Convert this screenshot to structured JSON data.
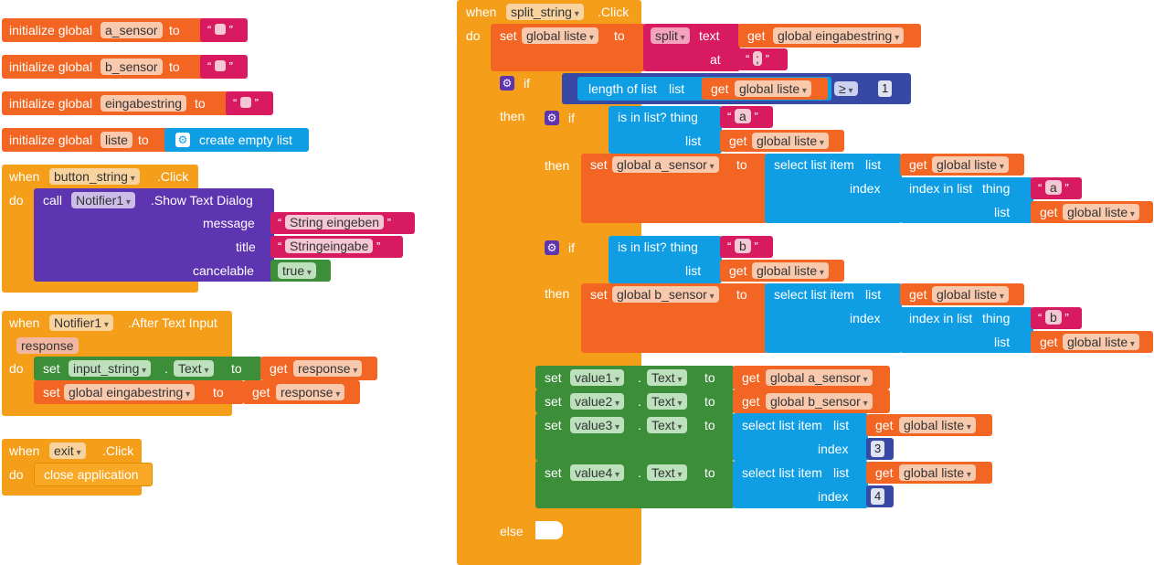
{
  "kw": {
    "initialize_global": "initialize global",
    "to": "to",
    "when": "when",
    "do": "do",
    "click": ".Click",
    "call": "call",
    "set": "set",
    "get": "get",
    "if": "if",
    "then": "then",
    "else": "else",
    "text": "text",
    "at": "at",
    "list": "list",
    "index": "index",
    "thing": "thing",
    "dot": ".",
    "open_quote": "“",
    "close_quote": "”"
  },
  "globals": [
    {
      "name": "a_sensor",
      "value": ""
    },
    {
      "name": "b_sensor",
      "value": ""
    },
    {
      "name": "eingabestring",
      "value": ""
    },
    {
      "name": "liste",
      "value": "create empty list"
    }
  ],
  "button_string_event": {
    "component": "button_string",
    "notifier": "Notifier1",
    "method": ".Show Text Dialog",
    "message_label": "message",
    "message_value": "String eingeben",
    "title_label": "title",
    "title_value": "Stringeingabe",
    "cancelable_label": "cancelable",
    "cancelable_value": "true"
  },
  "after_text_input_event": {
    "component": "Notifier1",
    "event": ".After Text Input",
    "param": "response",
    "set1_component": "input_string",
    "set1_prop": "Text",
    "set1_get": "response",
    "set2_var": "global eingabestring",
    "set2_get": "response"
  },
  "exit_event": {
    "component": "exit",
    "action": "close application"
  },
  "split_string_event": {
    "component": "split_string",
    "set_var": "global liste",
    "split_label": "split",
    "split_get": "global eingabestring",
    "at_value": ";",
    "length_of_list": "length of list",
    "length_get": "global liste",
    "compare_op": "≥",
    "compare_value": "1",
    "is_in_list": "is in list? thing",
    "select_list_item": "select list item",
    "index_in_list": "index in list",
    "branch_a": {
      "thing": "a",
      "list_get": "global liste",
      "set_var": "global a_sensor",
      "select_get": "global liste",
      "index_thing": "a",
      "index_list_get": "global liste"
    },
    "branch_b": {
      "thing": "b",
      "list_get": "global liste",
      "set_var": "global b_sensor",
      "select_get": "global liste",
      "index_thing": "b",
      "index_list_get": "global liste"
    },
    "value_sets": [
      {
        "component": "value1",
        "prop": "Text",
        "get": "global a_sensor"
      },
      {
        "component": "value2",
        "prop": "Text",
        "get": "global b_sensor"
      },
      {
        "component": "value3",
        "prop": "Text",
        "select_get": "global liste",
        "index": "3"
      },
      {
        "component": "value4",
        "prop": "Text",
        "select_get": "global liste",
        "index": "4"
      }
    ]
  }
}
